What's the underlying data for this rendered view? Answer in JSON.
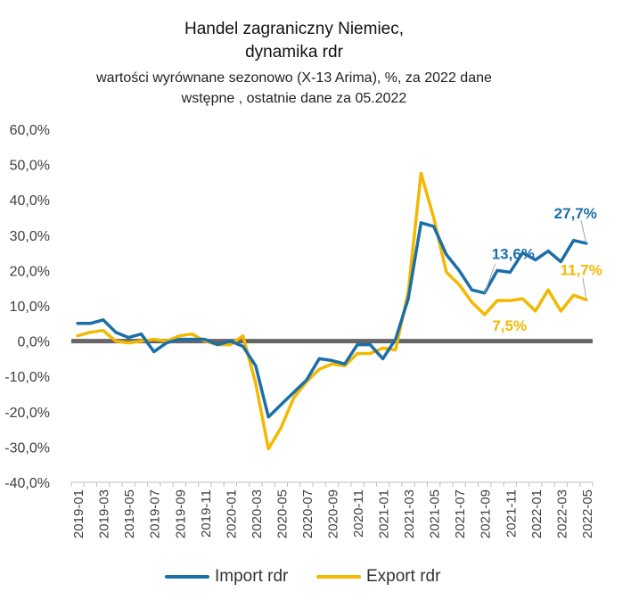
{
  "chart_data": {
    "type": "line",
    "title_line1": "Handel zagraniczny Niemiec,",
    "title_line2": "dynamika rdr",
    "subtitle_line1": "wartości wyrównane sezonowo (X-13 Arima), %, za 2022 dane",
    "subtitle_line2": "wstępne , ostatnie dane za 05.2022",
    "ylim": [
      -40,
      60
    ],
    "y_ticks": [
      "-40,0%",
      "-30,0%",
      "-20,0%",
      "-10,0%",
      "0,0%",
      "10,0%",
      "20,0%",
      "30,0%",
      "40,0%",
      "50,0%",
      "60,0%"
    ],
    "y_tick_values": [
      -40,
      -30,
      -20,
      -10,
      0,
      10,
      20,
      30,
      40,
      50,
      60
    ],
    "x": [
      "2019-01",
      "2019-02",
      "2019-03",
      "2019-04",
      "2019-05",
      "2019-06",
      "2019-07",
      "2019-08",
      "2019-09",
      "2019-10",
      "2019-11",
      "2019-12",
      "2020-01",
      "2020-02",
      "2020-03",
      "2020-04",
      "2020-05",
      "2020-06",
      "2020-07",
      "2020-08",
      "2020-09",
      "2020-10",
      "2020-11",
      "2020-12",
      "2021-01",
      "2021-02",
      "2021-03",
      "2021-04",
      "2021-05",
      "2021-06",
      "2021-07",
      "2021-08",
      "2021-09",
      "2021-10",
      "2021-11",
      "2021-12",
      "2022-01",
      "2022-02",
      "2022-03",
      "2022-04",
      "2022-05"
    ],
    "x_tick_labels": [
      "2019-01",
      "2019-03",
      "2019-05",
      "2019-07",
      "2019-09",
      "2019-11",
      "2020-01",
      "2020-03",
      "2020-05",
      "2020-07",
      "2020-09",
      "2020-11",
      "2021-01",
      "2021-03",
      "2021-05",
      "2021-07",
      "2021-09",
      "2021-11",
      "2022-01",
      "2022-03",
      "2022-05"
    ],
    "series": [
      {
        "name": "Import rdr",
        "color": "#1b6fa8",
        "values": [
          5.0,
          5.0,
          6.0,
          2.5,
          1.0,
          2.0,
          -3.0,
          -0.5,
          0.5,
          0.5,
          0.5,
          -1.0,
          0.0,
          -1.5,
          -7.0,
          -21.5,
          -18.0,
          -14.5,
          -11.0,
          -5.0,
          -5.5,
          -6.5,
          -1.0,
          -1.0,
          -5.0,
          0.5,
          12.0,
          33.5,
          32.5,
          24.5,
          20.0,
          14.5,
          13.6,
          20.0,
          19.5,
          25.0,
          23.0,
          25.5,
          22.5,
          28.5,
          27.7
        ]
      },
      {
        "name": "Export rdr",
        "color": "#f3b800",
        "values": [
          1.5,
          2.5,
          3.0,
          0.0,
          -0.5,
          0.0,
          0.5,
          0.0,
          1.5,
          2.0,
          0.0,
          -1.0,
          -1.0,
          1.5,
          -12.0,
          -30.5,
          -24.5,
          -16.0,
          -11.5,
          -8.0,
          -6.5,
          -7.0,
          -3.5,
          -3.5,
          -2.0,
          -2.5,
          14.0,
          47.5,
          35.0,
          19.5,
          16.0,
          11.0,
          7.5,
          11.5,
          11.5,
          12.0,
          8.5,
          14.5,
          8.5,
          13.0,
          11.7
        ]
      }
    ],
    "annotations": [
      {
        "text": "13,6%",
        "series": "Import rdr",
        "x": "2021-09"
      },
      {
        "text": "27,7%",
        "series": "Import rdr",
        "x": "2022-05"
      },
      {
        "text": "7,5%",
        "series": "Export rdr",
        "x": "2021-09"
      },
      {
        "text": "11,7%",
        "series": "Export rdr",
        "x": "2022-05"
      }
    ],
    "zero_line_color": "#666666",
    "grid": false,
    "legend_position": "bottom"
  }
}
